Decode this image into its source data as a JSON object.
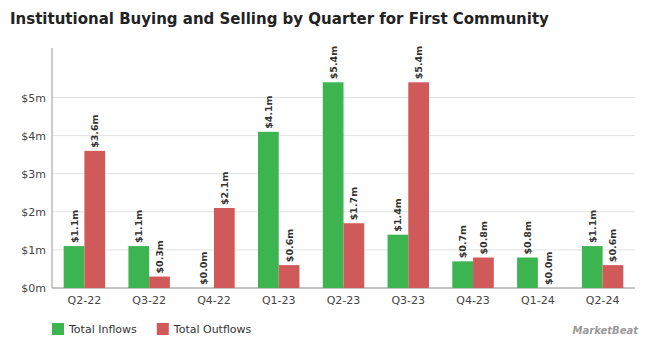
{
  "chart_data": {
    "type": "bar",
    "title": "Institutional Buying and Selling by Quarter for First Community",
    "categories": [
      "Q2-22",
      "Q3-22",
      "Q4-22",
      "Q1-23",
      "Q2-23",
      "Q3-23",
      "Q4-23",
      "Q1-24",
      "Q2-24"
    ],
    "series": [
      {
        "name": "Total Inflows",
        "color": "#3cb550",
        "values": [
          1.1,
          1.1,
          0.0,
          4.1,
          5.4,
          1.4,
          0.7,
          0.8,
          1.1
        ],
        "value_labels": [
          "$1.1m",
          "$1.1m",
          "$0.0m",
          "$4.1m",
          "$5.4m",
          "$1.4m",
          "$0.7m",
          "$0.8m",
          "$1.1m"
        ]
      },
      {
        "name": "Total Outflows",
        "color": "#d05a5a",
        "values": [
          3.6,
          0.3,
          2.1,
          0.6,
          1.7,
          5.4,
          0.8,
          0.0,
          0.6
        ],
        "value_labels": [
          "$3.6m",
          "$0.3m",
          "$2.1m",
          "$0.6m",
          "$1.7m",
          "$5.4m",
          "$0.8m",
          "$0.0m",
          "$0.6m"
        ]
      }
    ],
    "ylim": [
      0,
      6.3
    ],
    "yticks": [
      {
        "value": 0,
        "label": "$0m"
      },
      {
        "value": 1,
        "label": "$1m"
      },
      {
        "value": 2,
        "label": "$2m"
      },
      {
        "value": 3,
        "label": "$3m"
      },
      {
        "value": 4,
        "label": "$4m"
      },
      {
        "value": 5,
        "label": "$5m"
      }
    ],
    "grid": true,
    "legend": "lower left",
    "data_labels": true,
    "annotations": [
      "MarketBeat"
    ]
  }
}
